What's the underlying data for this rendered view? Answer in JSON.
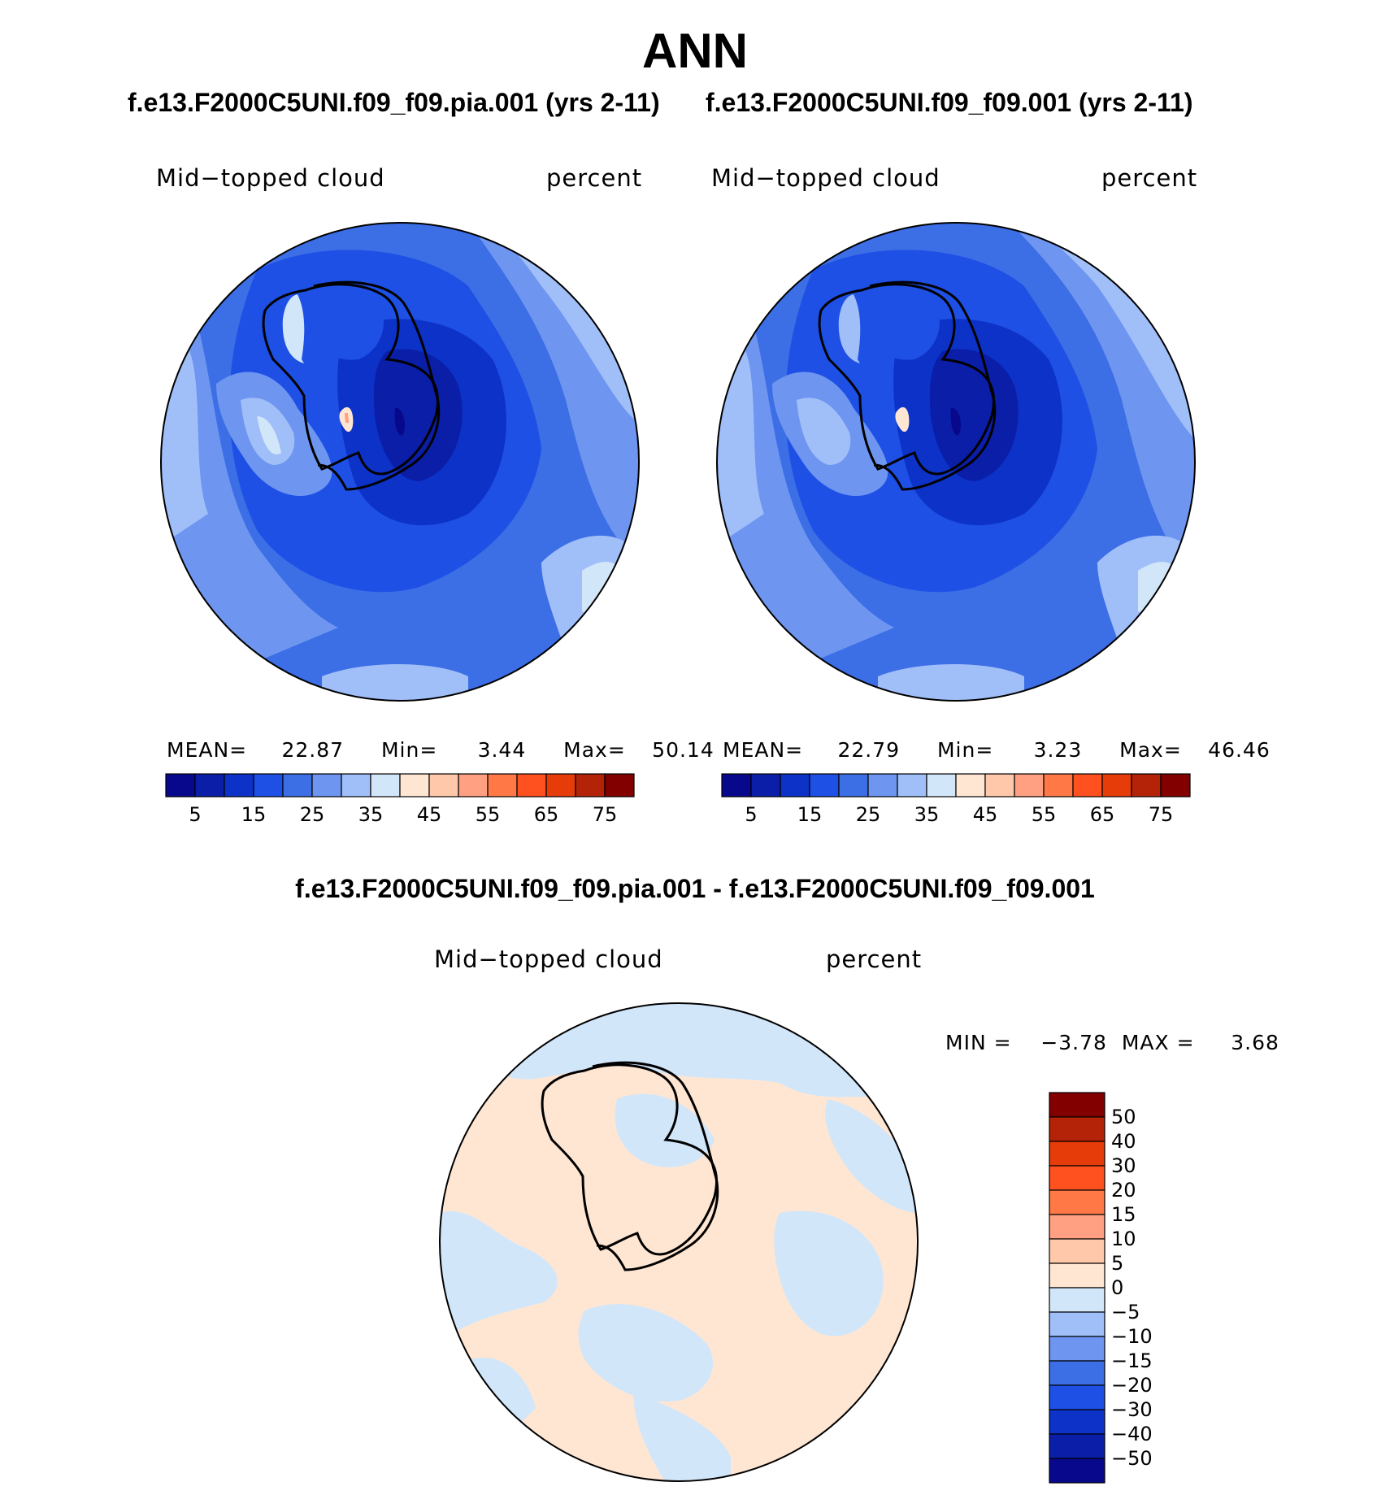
{
  "main_title": "ANN",
  "panels": [
    {
      "case_title": "f.e13.F2000C5UNI.f09_f09.pia.001 (yrs 2-11)",
      "variable": "Mid−topped cloud",
      "units": "percent",
      "stats": {
        "mean_label": "MEAN=",
        "mean": "22.87",
        "min_label": "Min=",
        "min": "3.44",
        "max_label": "Max=",
        "max": "50.14"
      }
    },
    {
      "case_title": "f.e13.F2000C5UNI.f09_f09.001 (yrs 2-11)",
      "variable": "Mid−topped cloud",
      "units": "percent",
      "stats": {
        "mean_label": "MEAN=",
        "mean": "22.79",
        "min_label": "Min=",
        "min": "3.23",
        "max_label": "Max=",
        "max": "46.46"
      }
    }
  ],
  "colorbar": {
    "colors": [
      "#08088c",
      "#0a1ea8",
      "#0c32c8",
      "#1e50e6",
      "#3c6ee6",
      "#6e96f0",
      "#a0bef8",
      "#d2e6fa",
      "#ffe6d2",
      "#ffc8aa",
      "#ffa082",
      "#ff7846",
      "#ff5020",
      "#e63c0a",
      "#b42308",
      "#820000"
    ],
    "ticks": [
      "5",
      "15",
      "25",
      "35",
      "45",
      "55",
      "65",
      "75"
    ]
  },
  "difference": {
    "title": "f.e13.F2000C5UNI.f09_f09.pia.001 - f.e13.F2000C5UNI.f09_f09.001",
    "variable": "Mid−topped cloud",
    "units": "percent",
    "stats": "MIN =    −3.78  MAX =     3.68",
    "colorbar": {
      "colors_top_to_bottom": [
        "#820000",
        "#b42308",
        "#e63c0a",
        "#ff5020",
        "#ff7846",
        "#ffa082",
        "#ffc8aa",
        "#ffe6d2",
        "#d2e6fa",
        "#a0bef8",
        "#6e96f0",
        "#3c6ee6",
        "#1e50e6",
        "#0c32c8",
        "#0a1ea8",
        "#08088c"
      ],
      "ticks_top_to_bottom": [
        "50",
        "40",
        "30",
        "20",
        "15",
        "10",
        "5",
        "0",
        "−5",
        "−10",
        "−15",
        "−20",
        "−30",
        "−40",
        "−50"
      ]
    }
  }
}
